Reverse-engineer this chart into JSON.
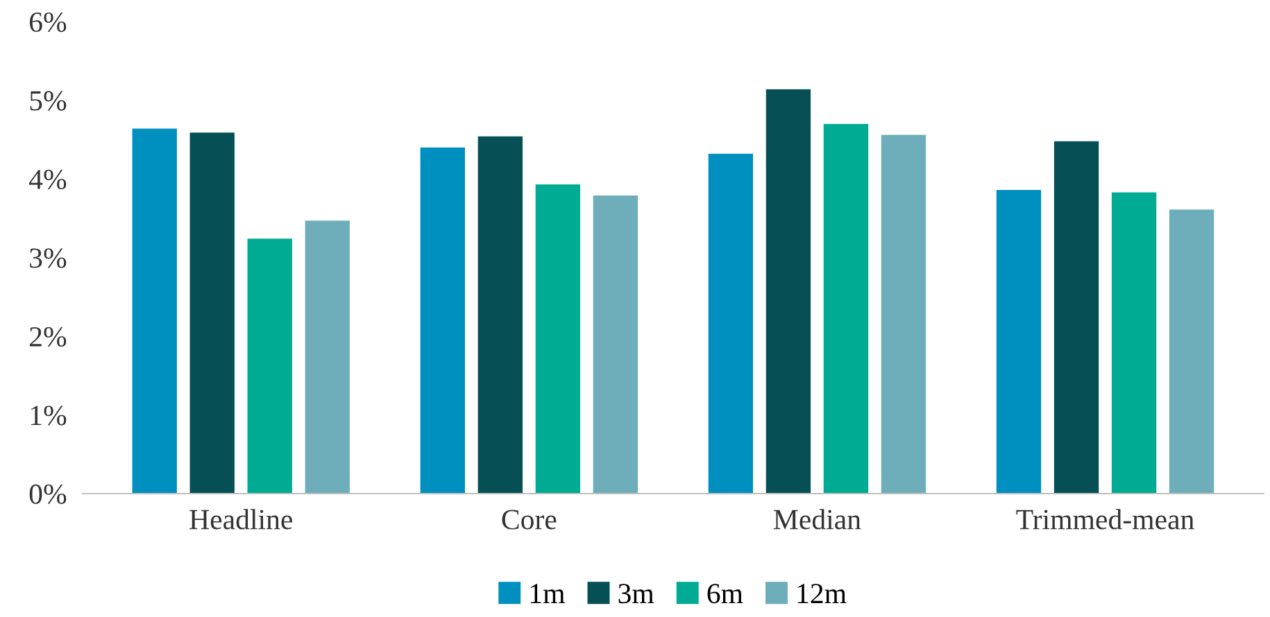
{
  "chart_data": {
    "type": "bar",
    "categories": [
      "Headline",
      "Core",
      "Median",
      "Trimmed-mean"
    ],
    "series": [
      {
        "name": "1m",
        "color": "#0090c0",
        "values": [
          4.64,
          4.4,
          4.32,
          3.86
        ]
      },
      {
        "name": "3m",
        "color": "#064f55",
        "values": [
          4.59,
          4.54,
          5.14,
          4.48
        ]
      },
      {
        "name": "6m",
        "color": "#00ab94",
        "values": [
          3.24,
          3.93,
          4.7,
          3.83
        ]
      },
      {
        "name": "12m",
        "color": "#6eaebb",
        "values": [
          3.47,
          3.79,
          4.56,
          3.61
        ]
      }
    ],
    "ylim": [
      0,
      6
    ],
    "yticks": [
      {
        "value": 0,
        "label": "0%"
      },
      {
        "value": 1,
        "label": "1%"
      },
      {
        "value": 2,
        "label": "2%"
      },
      {
        "value": 3,
        "label": "3%"
      },
      {
        "value": 4,
        "label": "4%"
      },
      {
        "value": 5,
        "label": "5%"
      },
      {
        "value": 6,
        "label": "6%"
      }
    ],
    "grid": false,
    "legend": "bottom"
  }
}
